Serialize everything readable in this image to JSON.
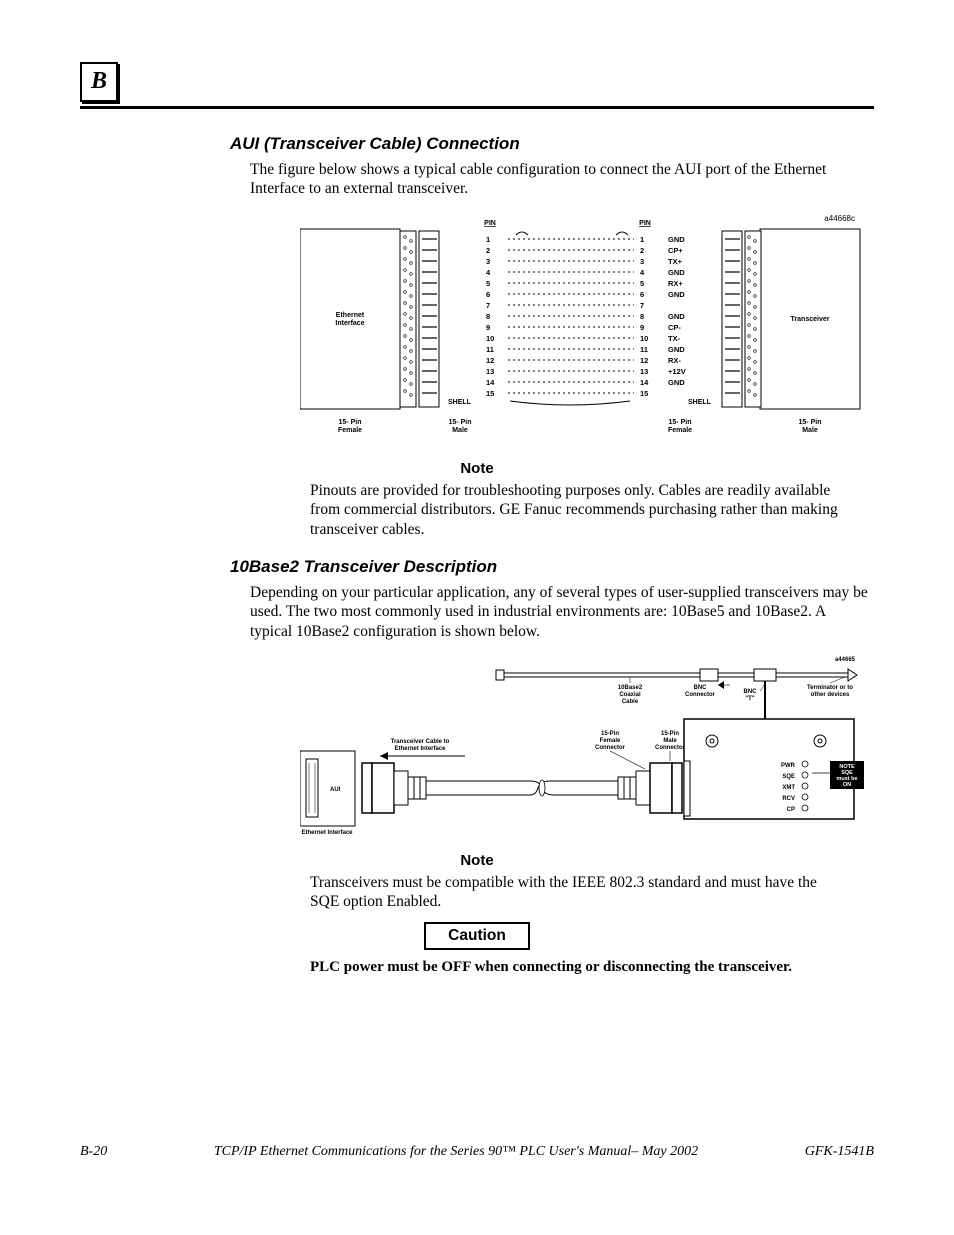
{
  "appendix_letter": "B",
  "section1": {
    "heading": "AUI (Transceiver Cable) Connection",
    "body": "The figure below shows a typical cable configuration to connect the AUI port of the Ethernet Interface to an external transceiver."
  },
  "figure1": {
    "ref": "a44668c",
    "left_block": "Ethernet Interface",
    "right_block": "Transceiver",
    "pin_header_left": "PIN",
    "pin_header_right": "PIN",
    "pins_left": [
      "1",
      "2",
      "3",
      "4",
      "5",
      "6",
      "7",
      "8",
      "9",
      "10",
      "11",
      "12",
      "13",
      "14",
      "15"
    ],
    "pins_right": [
      "1",
      "2",
      "3",
      "4",
      "5",
      "6",
      "7",
      "8",
      "9",
      "10",
      "11",
      "12",
      "13",
      "14",
      "15"
    ],
    "signals": [
      "GND",
      "CP+",
      "TX+",
      "GND",
      "RX+",
      "GND",
      "",
      "GND",
      "CP-",
      "TX-",
      "GND",
      "RX-",
      "+12V",
      "GND",
      ""
    ],
    "shell": "SHELL",
    "conn_labels": [
      "15- Pin Female",
      "15- Pin Male",
      "15- Pin Female",
      "15- Pin Male"
    ]
  },
  "note1": {
    "heading": "Note",
    "body": "Pinouts are provided for troubleshooting purposes only.  Cables are readily available from commercial distributors.  GE Fanuc recommends purchasing rather than making transceiver cables."
  },
  "section2": {
    "heading": "10Base2 Transceiver Description",
    "body": "Depending on your particular application, any of several types of user-supplied transceivers may be used.  The two most commonly used in industrial environments are:  10Base5 and 10Base2.  A typical 10Base2 configuration is shown below."
  },
  "figure2": {
    "ref": "a44665",
    "eth_iface": "Ethernet Interface",
    "aui": "AUI",
    "cable_label": "Transceiver Cable to Ethernet Interface",
    "coax_label": "10Base2 Coaxial Cable",
    "conn_female": "15-Pin Female Connector",
    "conn_male": "15-Pin Male Connector",
    "bnc_conn": "BNC Connector",
    "bnc_t": "BNC \"T\"",
    "term_label": "Terminator or to other devices",
    "leds": [
      "PWR",
      "SQE",
      "XMT",
      "RCV",
      "CP"
    ],
    "sqe_note": [
      "NOTE",
      "SQE",
      "must be",
      "ON"
    ]
  },
  "note2": {
    "heading": "Note",
    "body": "Transceivers must be compatible with the IEEE 802.3 standard and must have the SQE option Enabled."
  },
  "caution": {
    "heading": "Caution",
    "body": "PLC power must be OFF when connecting or disconnecting the transceiver."
  },
  "footer": {
    "left": "B-20",
    "middle": "TCP/IP Ethernet Communications for the Series 90™ PLC User's Manual– May 2002",
    "right": "GFK-1541B"
  },
  "style": {
    "colors": {
      "text": "#000000",
      "background": "#ffffff",
      "line": "#000000"
    },
    "font_sizes": {
      "heading": 17,
      "body": 15.5,
      "figure_small": 7,
      "figure_tiny": 6,
      "note_heading": 15,
      "caution": 15.5,
      "footer": 14
    }
  }
}
